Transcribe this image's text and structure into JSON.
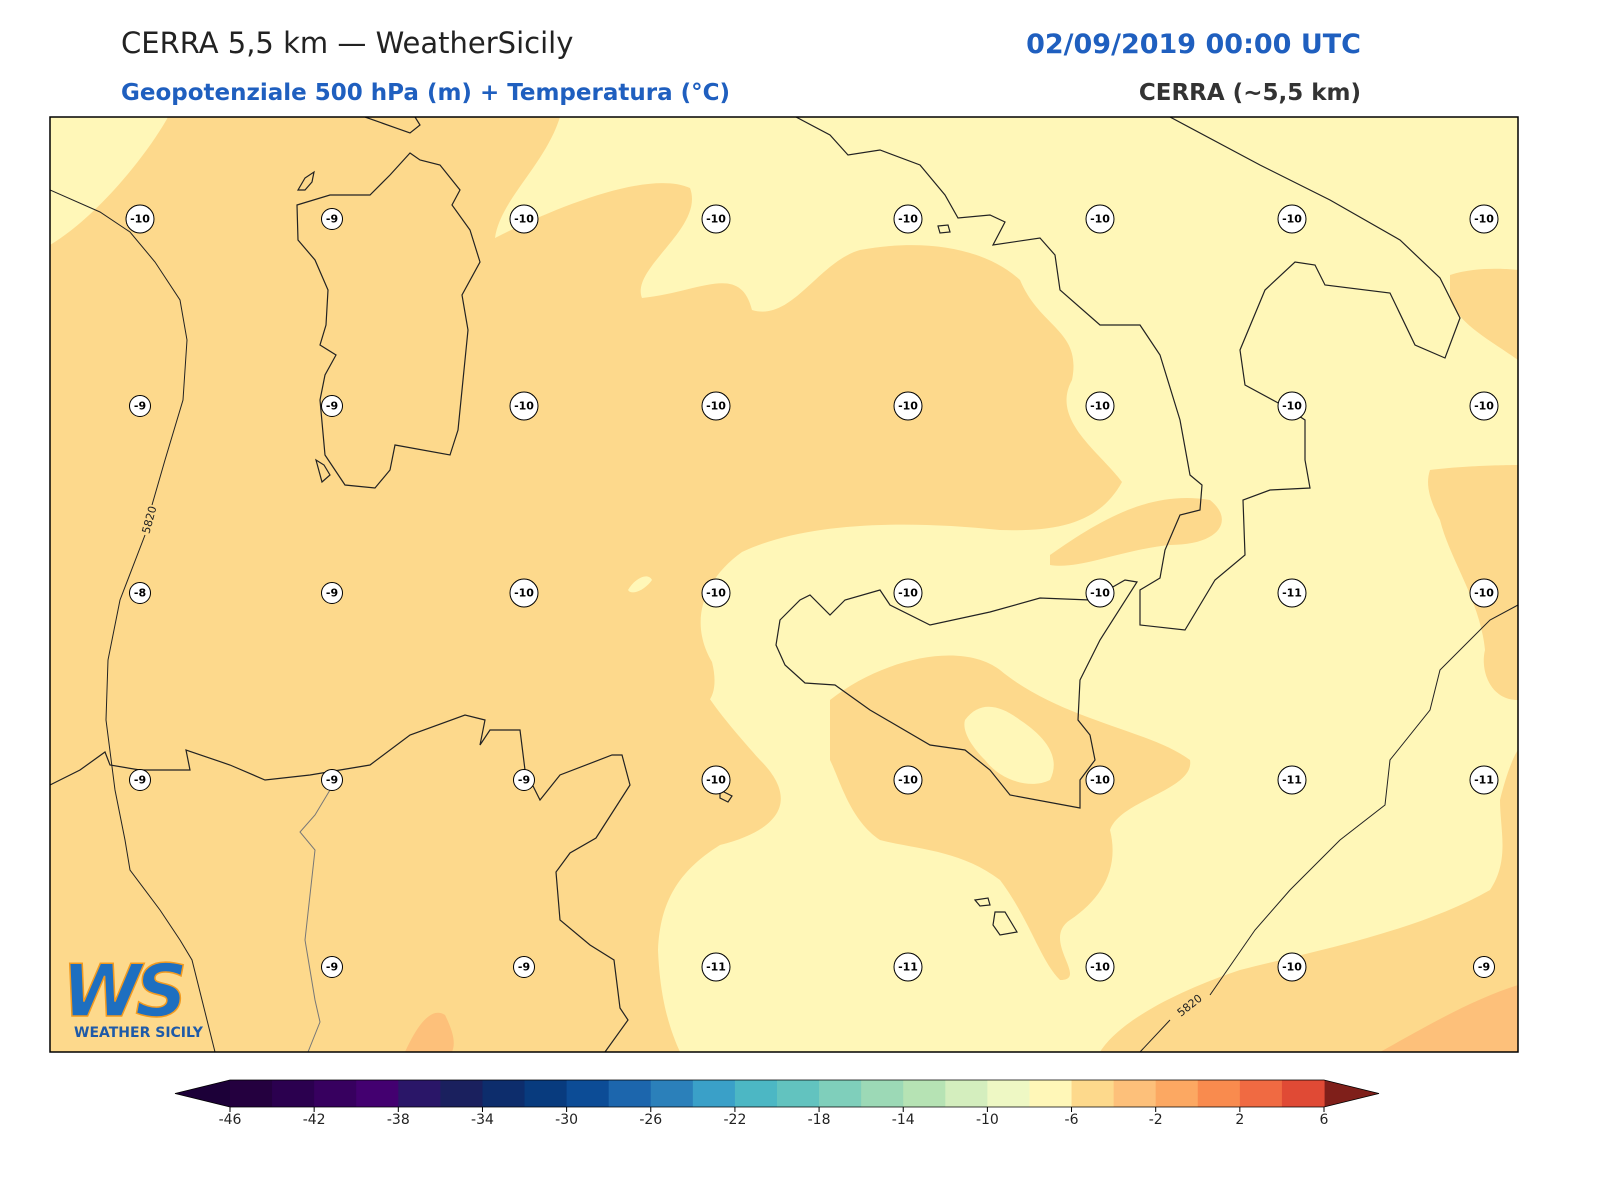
{
  "header": {
    "title": "CERRA 5,5 km — WeatherSicily",
    "subtitle": "Geopotenziale 500 hPa (m) + Temperatura (°C)",
    "datetime": "02/09/2019 00:00 UTC",
    "model": "CERRA (~5,5 km)"
  },
  "map": {
    "contour_labels": [
      "5820",
      "5820"
    ],
    "temperature_grid": [
      [
        -10,
        -9,
        -10,
        -10,
        -10,
        -10,
        -10,
        -10
      ],
      [
        -9,
        -9,
        -10,
        -10,
        -10,
        -10,
        -10,
        -10
      ],
      [
        -8,
        -9,
        -10,
        -10,
        -10,
        -10,
        -11,
        -10
      ],
      [
        -9,
        -9,
        -9,
        -10,
        -10,
        -10,
        -11,
        -11
      ],
      [
        null,
        -9,
        -9,
        -11,
        -11,
        -10,
        -10,
        -9
      ]
    ]
  },
  "logo": {
    "mark": "WS",
    "text": "WEATHER SICILY"
  },
  "colorbar": {
    "lim": [
      -46,
      6
    ],
    "ticks": [
      -46,
      -42,
      -38,
      -34,
      -30,
      -26,
      -22,
      -18,
      -14,
      -10,
      -6,
      -2,
      2,
      6
    ],
    "under_color": "#1c0038",
    "over_color": "#7f1f1a",
    "colors": [
      "#24003f",
      "#2b004f",
      "#37005f",
      "#430070",
      "#2a1668",
      "#1a205e",
      "#0d2d6c",
      "#083b7e",
      "#0c4c96",
      "#1c66ad",
      "#2b80ba",
      "#3aa0c8",
      "#4cb7c4",
      "#62c3bf",
      "#7fcfbb",
      "#9cd9b6",
      "#b6e3b4",
      "#d4eebe",
      "#eef8c4",
      "#fff7b8",
      "#fdd98c",
      "#fdc07a",
      "#fca862",
      "#f98b4e",
      "#f06a42",
      "#e04a35"
    ]
  }
}
